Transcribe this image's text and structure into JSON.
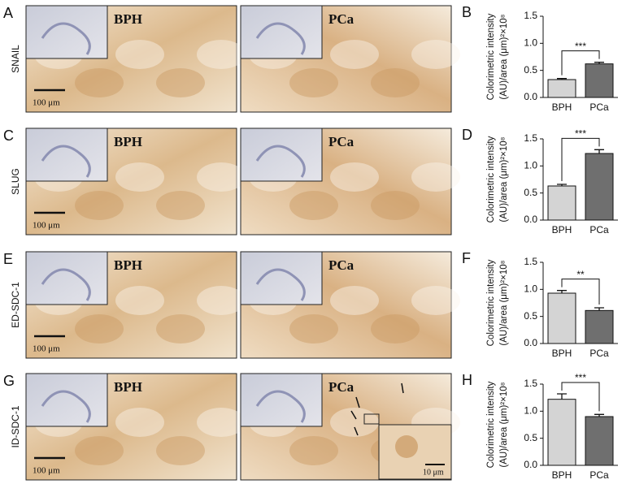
{
  "image_panels": [
    {
      "letter": "A",
      "stain": "SNAIL",
      "left_label": "BPH",
      "right_label": "PCa",
      "scale": "100 μm"
    },
    {
      "letter": "C",
      "stain": "SLUG",
      "left_label": "BPH",
      "right_label": "PCa",
      "scale": "100 μm"
    },
    {
      "letter": "E",
      "stain": "ED-SDC-1",
      "left_label": "BPH",
      "right_label": "PCa",
      "scale": "100 μm"
    },
    {
      "letter": "G",
      "stain": "ID-SDC-1",
      "left_label": "BPH",
      "right_label": "PCa",
      "scale": "100 μm",
      "inset_scale": "10 μm"
    }
  ],
  "chart_data": [
    {
      "type": "bar",
      "panel": "B",
      "ylabel": [
        "Colorimetric intensity",
        "(AU)/area (μm)²×10⁸"
      ],
      "categories": [
        "BPH",
        "PCa"
      ],
      "values": [
        0.33,
        0.62
      ],
      "errors": [
        0.02,
        0.03
      ],
      "colors": [
        "#d4d4d4",
        "#6f6f6f"
      ],
      "ylim": [
        0,
        1.5
      ],
      "yticks": [
        {
          "value": 0,
          "label": "0.0"
        },
        0.5,
        {
          "value": 1,
          "label": "1.0"
        },
        1.5
      ],
      "annotation": "***"
    },
    {
      "type": "bar",
      "panel": "D",
      "ylabel": [
        "Colorimetric intensity",
        "(AU)/area (μm)²×10⁸"
      ],
      "categories": [
        "BPH",
        "PCa"
      ],
      "values": [
        0.63,
        1.23
      ],
      "errors": [
        0.03,
        0.07
      ],
      "colors": [
        "#d4d4d4",
        "#6f6f6f"
      ],
      "ylim": [
        0,
        1.5
      ],
      "yticks": [
        {
          "value": 0,
          "label": "0.0"
        },
        0.5,
        {
          "value": 1,
          "label": "1.0"
        },
        1.5
      ],
      "annotation": "***"
    },
    {
      "type": "bar",
      "panel": "F",
      "ylabel": [
        "Colorimetric intensity",
        "(AU)/area (μm)²×10⁸"
      ],
      "categories": [
        "BPH",
        "PCa"
      ],
      "values": [
        0.93,
        0.61
      ],
      "errors": [
        0.05,
        0.05
      ],
      "colors": [
        "#d4d4d4",
        "#6f6f6f"
      ],
      "ylim": [
        0,
        1.5
      ],
      "yticks": [
        {
          "value": 0,
          "label": "0.0"
        },
        0.5,
        {
          "value": 1,
          "label": "1.0"
        },
        1.5
      ],
      "annotation": "**"
    },
    {
      "type": "bar",
      "panel": "H",
      "ylabel": [
        "Colorimetric intensity",
        "(AU)/area (μm)²×10⁸"
      ],
      "categories": [
        "BPH",
        "PCa"
      ],
      "values": [
        1.22,
        0.9
      ],
      "errors": [
        0.1,
        0.04
      ],
      "colors": [
        "#d4d4d4",
        "#6f6f6f"
      ],
      "ylim": [
        0,
        1.5
      ],
      "yticks": [
        {
          "value": 0,
          "label": "0.0"
        },
        0.5,
        {
          "value": 1,
          "label": "1.0"
        },
        1.5
      ],
      "annotation": "***"
    }
  ]
}
